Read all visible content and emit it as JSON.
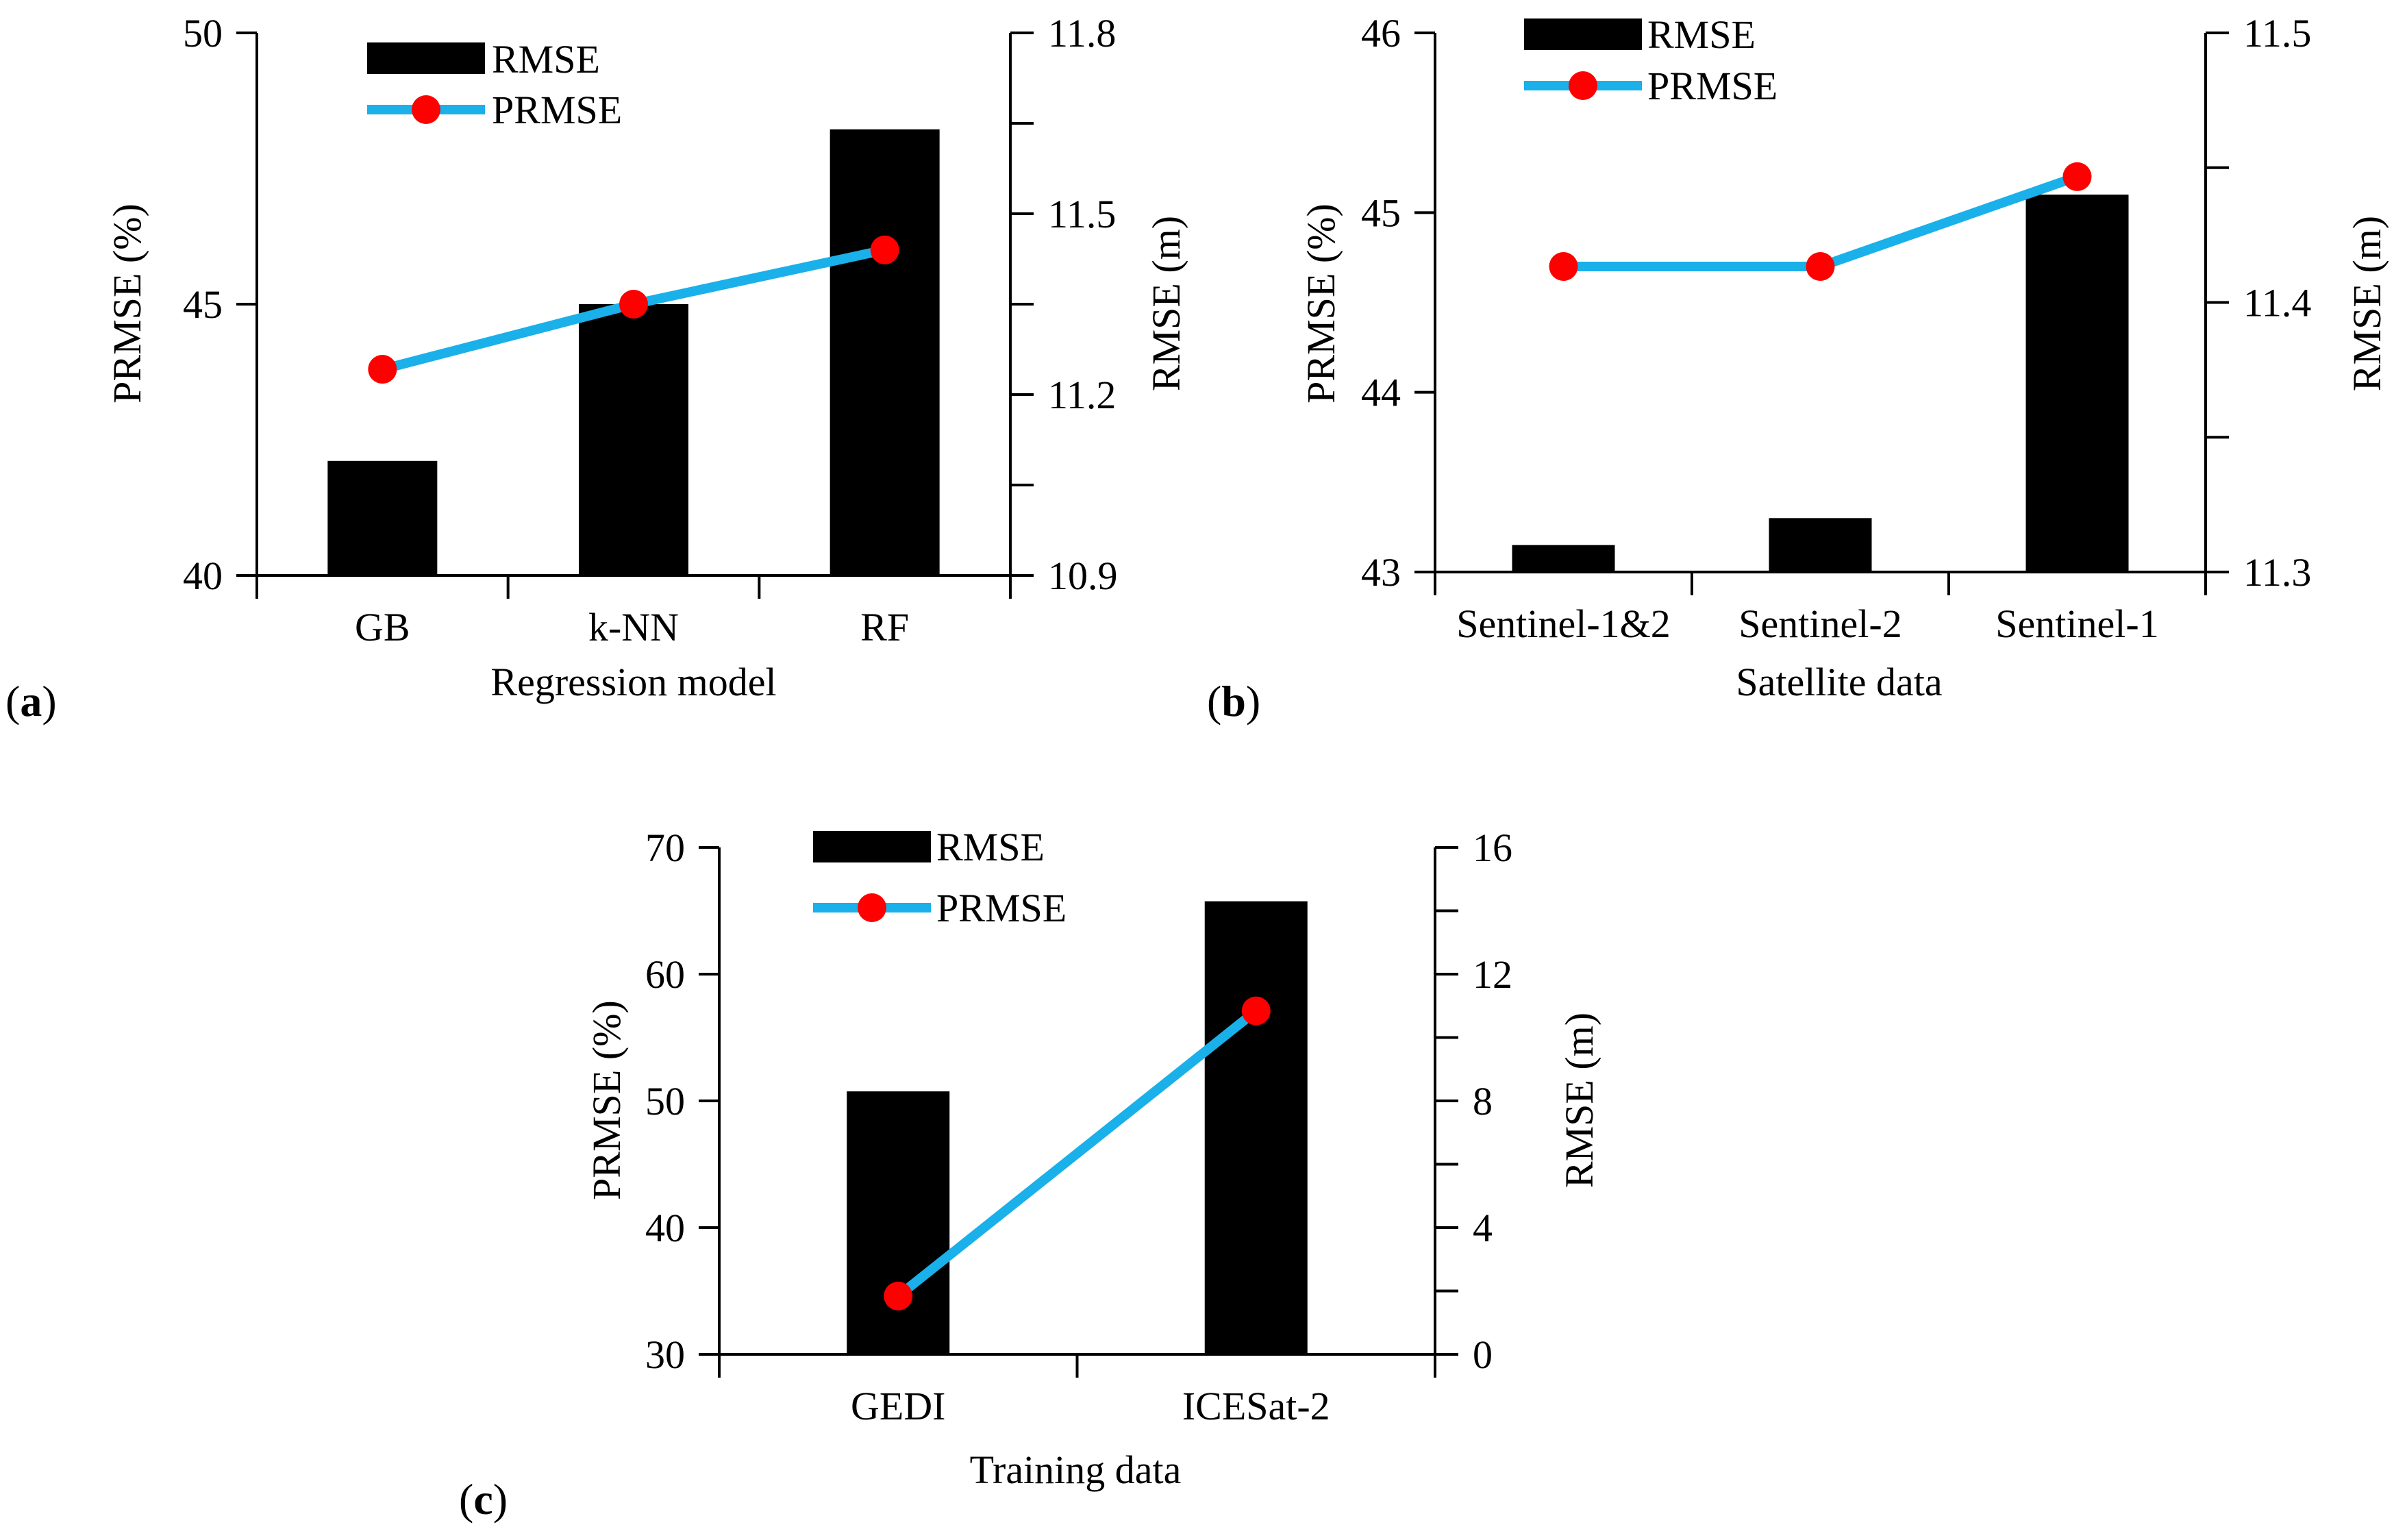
{
  "colors": {
    "bar": "#000000",
    "line": "#1ab0ea",
    "marker": "#ff0000",
    "axis": "#000000"
  },
  "chart_data": [
    {
      "panel": "a",
      "panel_label": "(a)",
      "type": "bar",
      "categories": [
        "GB",
        "k-NN",
        "RF"
      ],
      "xlabel": "Regression model",
      "ylabel": "PRMSE (%)",
      "y2label": "RMSE (m)",
      "ylim": [
        40,
        50
      ],
      "yticks": [
        40,
        45,
        50
      ],
      "y2lim": [
        10.9,
        11.8
      ],
      "y2ticks": [
        "10.9",
        "11.2",
        "11.5",
        "11.8"
      ],
      "legend": [
        "RMSE",
        "PRMSE"
      ],
      "legend_position": "top-left",
      "series": [
        {
          "name": "RMSE",
          "type": "bar",
          "axis": "right",
          "values": [
            11.09,
            11.35,
            11.64
          ]
        },
        {
          "name": "PRMSE",
          "type": "line",
          "axis": "left",
          "values": [
            43.8,
            45.0,
            46.0
          ]
        }
      ]
    },
    {
      "panel": "b",
      "panel_label": "(b)",
      "type": "bar",
      "categories": [
        "Sentinel-1&2",
        "Sentinel-2",
        "Sentinel-1"
      ],
      "xlabel": "Satellite data",
      "ylabel": "PRMSE (%)",
      "y2label": "RMSE (m)",
      "ylim": [
        43,
        46
      ],
      "yticks": [
        43,
        44,
        45,
        46
      ],
      "y2lim": [
        11.3,
        11.5
      ],
      "y2ticks": [
        "11.3",
        "11.4",
        "11.5"
      ],
      "legend": [
        "RMSE",
        "PRMSE"
      ],
      "legend_position": "top-left",
      "series": [
        {
          "name": "RMSE",
          "type": "bar",
          "axis": "right",
          "values": [
            11.31,
            11.32,
            11.44
          ]
        },
        {
          "name": "PRMSE",
          "type": "line",
          "axis": "left",
          "values": [
            44.7,
            44.7,
            45.2
          ]
        }
      ]
    },
    {
      "panel": "c",
      "panel_label": "(c)",
      "type": "bar",
      "categories": [
        "GEDI",
        "ICESat-2"
      ],
      "xlabel": "Training data",
      "ylabel": "PRMSE (%)",
      "y2label": "RMSE (m)",
      "ylim": [
        30,
        70
      ],
      "yticks": [
        30,
        40,
        50,
        60,
        70
      ],
      "y2lim": [
        0,
        16
      ],
      "y2ticks": [
        "0",
        "4",
        "8",
        "12",
        "16"
      ],
      "legend": [
        "RMSE",
        "PRMSE"
      ],
      "legend_position": "top-left",
      "series": [
        {
          "name": "RMSE",
          "type": "bar",
          "axis": "right",
          "values": [
            8.3,
            14.3
          ]
        },
        {
          "name": "PRMSE",
          "type": "line",
          "axis": "left",
          "values": [
            34.6,
            57.1
          ]
        }
      ]
    }
  ]
}
